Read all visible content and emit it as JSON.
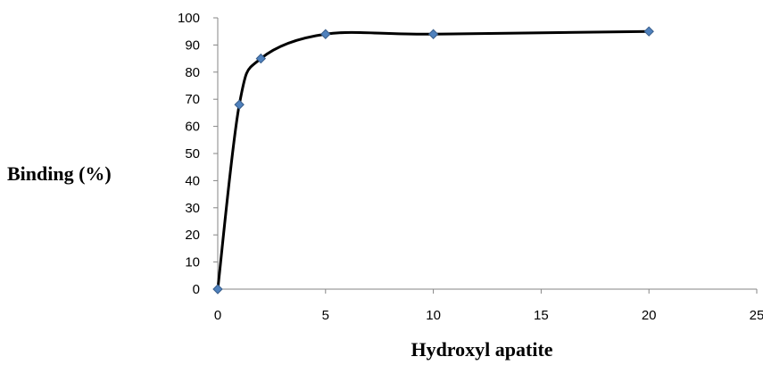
{
  "chart_data": {
    "type": "scatter",
    "xlabel": "Hydroxyl apatite",
    "ylabel": "Binding (%)",
    "xlim": [
      0,
      25
    ],
    "ylim": [
      0,
      100
    ],
    "x_ticks": [
      0,
      5,
      10,
      15,
      20,
      25
    ],
    "y_ticks": [
      0,
      10,
      20,
      30,
      40,
      50,
      60,
      70,
      80,
      90,
      100
    ],
    "grid": false,
    "legend": "none",
    "smoothed_line": true,
    "colors": {
      "line": "#000000",
      "marker": "#4F81BD",
      "marker_edge": "#385D8A",
      "axis": "#868686"
    },
    "series": [
      {
        "x": [
          0,
          1,
          2,
          5,
          10,
          20
        ],
        "y": [
          0,
          68,
          85,
          94,
          94,
          95
        ]
      }
    ]
  }
}
